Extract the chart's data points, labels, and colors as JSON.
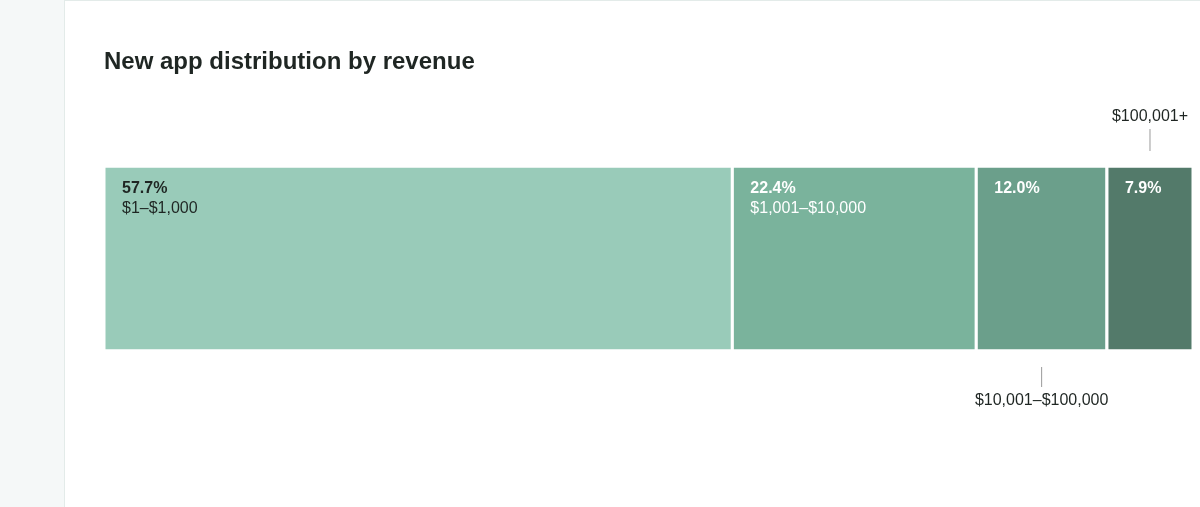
{
  "chart_data": {
    "type": "bar",
    "title": "New app distribution by revenue",
    "orientation": "horizontal",
    "stacked": true,
    "categories": [
      null
    ],
    "legend": false,
    "series": [
      {
        "name": "$1–$1,000",
        "color": "#99cbb9",
        "values": [
          57.7
        ],
        "value_labels": [
          "57.7%"
        ]
      },
      {
        "name": "$1,001–$10,000",
        "color": "#7ab39c",
        "values": [
          22.4
        ],
        "value_labels": [
          "22.4%"
        ]
      },
      {
        "name": "$10,001–$100,000",
        "color": "#6b9f8b",
        "values": [
          12.0
        ],
        "value_labels": [
          "12.0%"
        ]
      },
      {
        "name": "$100,001+",
        "color": "#537a6a",
        "values": [
          7.9
        ],
        "value_labels": [
          "7.9%"
        ]
      }
    ]
  }
}
